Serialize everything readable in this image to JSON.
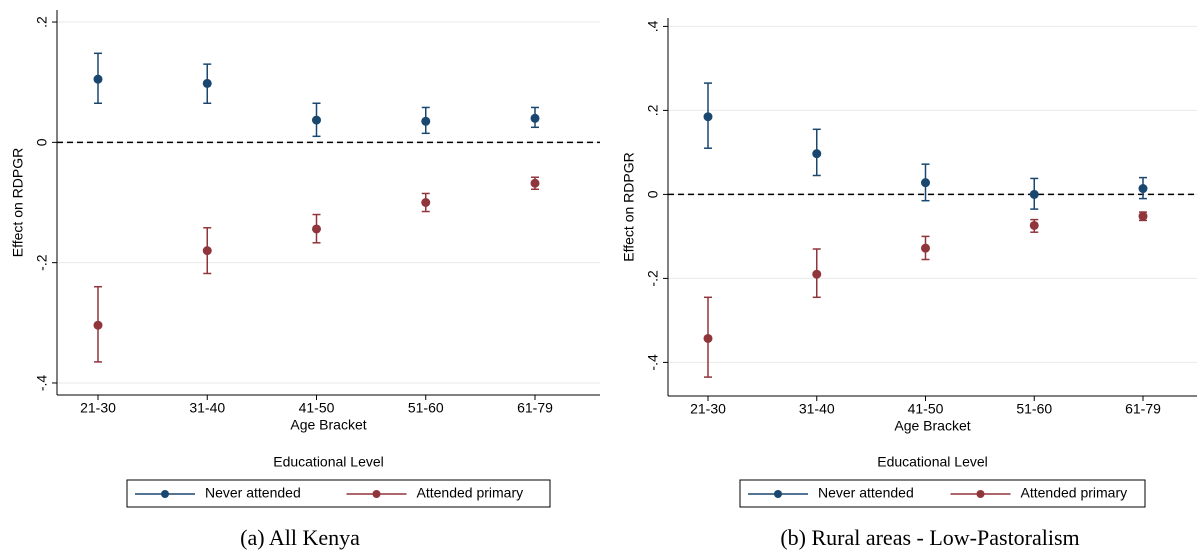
{
  "chart_data": [
    {
      "type": "errorbar",
      "caption": "(a) All Kenya",
      "y_label": "Effect on RDPGR",
      "x_label": "Age Bracket",
      "legend_title": "Educational Level",
      "categories": [
        "21-30",
        "31-40",
        "41-50",
        "51-60",
        "61-79"
      ],
      "ylim": [
        -0.42,
        0.22
      ],
      "yticks": [
        {
          "value": -0.4,
          "label": "-.4"
        },
        {
          "value": -0.2,
          "label": "-.2"
        },
        0,
        {
          "value": 0.2,
          "label": ".2"
        }
      ],
      "grid": true,
      "reference_line": 0,
      "legend": "bottom",
      "series": [
        {
          "name": "Never attended",
          "color": "#1a476f",
          "values": [
            0.105,
            0.098,
            0.037,
            0.035,
            0.04
          ],
          "lower": [
            0.065,
            0.065,
            0.01,
            0.015,
            0.025
          ],
          "upper": [
            0.148,
            0.13,
            0.065,
            0.058,
            0.058
          ]
        },
        {
          "name": "Attended primary",
          "color": "#90353b",
          "values": [
            -0.304,
            -0.18,
            -0.144,
            -0.1,
            -0.068
          ],
          "lower": [
            -0.365,
            -0.218,
            -0.167,
            -0.115,
            -0.078
          ],
          "upper": [
            -0.24,
            -0.142,
            -0.12,
            -0.085,
            -0.058
          ]
        }
      ]
    },
    {
      "type": "errorbar",
      "caption": "(b) Rural areas - Low-Pastoralism",
      "y_label": "Effect on RDPGR",
      "x_label": "Age Bracket",
      "legend_title": "Educational Level",
      "categories": [
        "21-30",
        "31-40",
        "41-50",
        "51-60",
        "61-79"
      ],
      "ylim": [
        -0.48,
        0.42
      ],
      "yticks": [
        {
          "value": -0.4,
          "label": "-.4"
        },
        {
          "value": -0.2,
          "label": "-.2"
        },
        0,
        {
          "value": 0.2,
          "label": ".2"
        },
        {
          "value": 0.4,
          "label": ".4"
        }
      ],
      "grid": true,
      "reference_line": 0,
      "legend": "bottom",
      "series": [
        {
          "name": "Never attended",
          "color": "#1a476f",
          "values": [
            0.185,
            0.097,
            0.028,
            0,
            0.014
          ],
          "lower": [
            0.11,
            0.045,
            -0.015,
            -0.035,
            -0.01
          ],
          "upper": [
            0.265,
            0.155,
            0.072,
            0.038,
            0.04
          ]
        },
        {
          "name": "Attended primary",
          "color": "#90353b",
          "values": [
            -0.343,
            -0.19,
            -0.128,
            -0.074,
            -0.052
          ],
          "lower": [
            -0.435,
            -0.245,
            -0.155,
            -0.09,
            -0.062
          ],
          "upper": [
            -0.245,
            -0.13,
            -0.1,
            -0.06,
            -0.042
          ]
        }
      ]
    }
  ]
}
